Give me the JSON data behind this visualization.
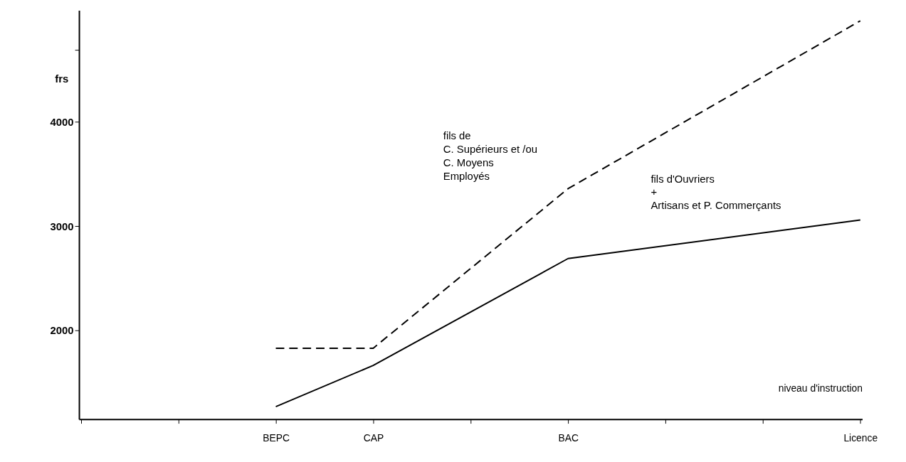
{
  "chart_data": {
    "type": "line",
    "xlabel": "niveau d'instruction",
    "ylabel": "frs",
    "categories": [
      null,
      null,
      "BEPC",
      "CAP",
      null,
      "BAC",
      null,
      null,
      "Licence"
    ],
    "series": [
      {
        "name": "fils de\nC. Supérieurs et /ou\nC. Moyens\nEmployés",
        "color": "#000000",
        "line_style": "dashed",
        "values": [
          null,
          null,
          1830,
          1830,
          null,
          3360,
          null,
          null,
          4970
        ]
      },
      {
        "name": "fils d'Ouvriers\n+\nArtisans et P. Commerçants",
        "color": "#000000",
        "line_style": "solid",
        "values": [
          null,
          null,
          1270,
          1665,
          null,
          2690,
          null,
          null,
          3060
        ]
      }
    ],
    "ylim": [
      1150,
      5070
    ],
    "yticks": [
      2000,
      3000,
      4000,
      {
        "value": 4690,
        "label": null
      }
    ],
    "grid": false,
    "legend": false,
    "marker": "none"
  }
}
